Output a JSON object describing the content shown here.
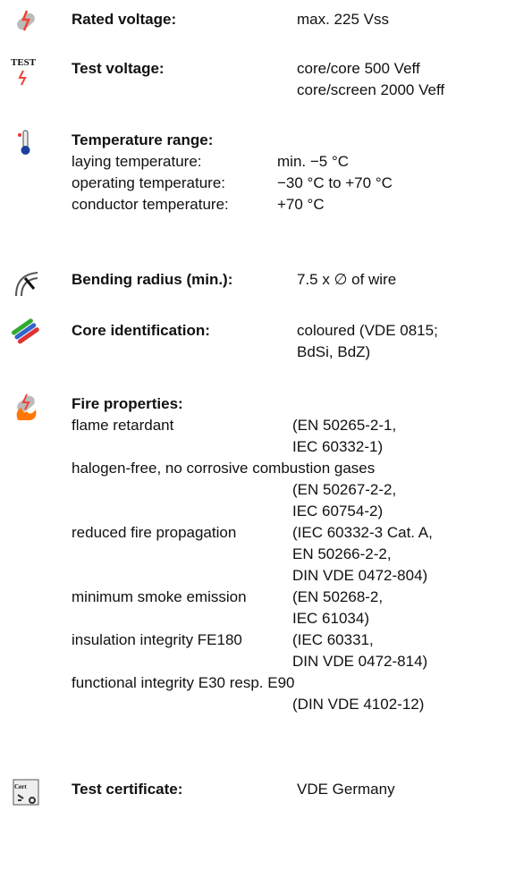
{
  "sections": [
    {
      "label": "Rated voltage:",
      "values": [
        "max. 225 Vss"
      ]
    },
    {
      "icon_text": "TEST",
      "label": "Test voltage:",
      "values": [
        "core/core 500 Veff",
        "core/screen 2000 Veff"
      ]
    },
    {
      "label": "Temperature range:",
      "rows": [
        [
          "laying temperature:",
          "min. −5 °C"
        ],
        [
          "operating temperature:",
          "−30 °C to +70 °C"
        ],
        [
          "conductor temperature:",
          "+70 °C"
        ]
      ]
    },
    {
      "label": "Bending radius (min.):",
      "values": [
        "7.5 x ∅ of wire"
      ]
    },
    {
      "label": "Core identification:",
      "values": [
        "coloured (VDE 0815;",
        "BdSi, BdZ)"
      ]
    },
    {
      "label": "Fire properties:",
      "items": [
        {
          "name": "flame retardant",
          "values": [
            "(EN 50265-2-1,",
            "IEC 60332-1)"
          ]
        },
        {
          "name": "halogen-free, no corrosive combustion gases",
          "values": [
            "(EN 50267-2-2,",
            "IEC 60754-2)"
          ]
        },
        {
          "name": "reduced fire propagation",
          "values": [
            "(IEC 60332-3 Cat. A,",
            "EN 50266-2-2,",
            "DIN VDE 0472-804)"
          ]
        },
        {
          "name": "minimum smoke emission",
          "values": [
            "(EN 50268-2,",
            "IEC 61034)"
          ]
        },
        {
          "name": "insulation integrity FE180",
          "values": [
            "(IEC 60331,",
            "DIN VDE 0472-814)"
          ]
        },
        {
          "name": "functional integrity E30 resp. E90",
          "values": [
            "(DIN VDE 4102-12)"
          ]
        }
      ]
    },
    {
      "icon_text": "Cert",
      "label": "Test certificate:",
      "values": [
        "VDE Germany"
      ]
    }
  ]
}
